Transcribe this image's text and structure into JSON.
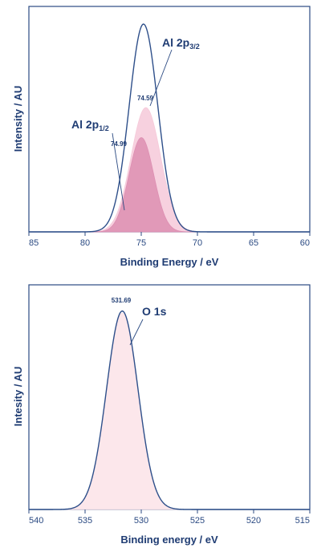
{
  "chart_data": [
    {
      "type": "area",
      "xlabel": "Binding Energy / eV",
      "ylabel": "Intensity / AU",
      "xlim": [
        85,
        60
      ],
      "x_ticks": [
        "85",
        "80",
        "75",
        "70",
        "65",
        "60"
      ],
      "reversed_x": true,
      "grid": false,
      "series": [
        {
          "name": "envelope",
          "kind": "line",
          "color": "#2e4f8a",
          "center": 74.8,
          "fwhm": 3.0,
          "height": 0.97
        },
        {
          "component": "Al 2p3/2",
          "kind": "filled",
          "color": "#f6c9d9",
          "center": 74.59,
          "fwhm": 3.1,
          "height": 0.58
        },
        {
          "component": "Al 2p1/2",
          "kind": "filled",
          "color": "#dd8fb2",
          "center": 74.99,
          "fwhm": 2.6,
          "height": 0.44
        }
      ],
      "annotations": [
        {
          "label_main": "Al 2p",
          "label_sub": "3/2",
          "value": "74.59"
        },
        {
          "label_main": "Al 2p",
          "label_sub": "1/2",
          "value": "74.99"
        }
      ]
    },
    {
      "type": "area",
      "xlabel": "Binding energy / eV",
      "ylabel": "Intesity / AU",
      "xlim": [
        540,
        515
      ],
      "x_ticks": [
        "540",
        "535",
        "530",
        "525",
        "520",
        "515"
      ],
      "reversed_x": true,
      "grid": false,
      "series": [
        {
          "name": "envelope",
          "kind": "line",
          "color": "#2e4f8a",
          "center": 531.69,
          "fwhm": 3.3,
          "height": 0.97
        },
        {
          "component": "O 1s",
          "kind": "filled",
          "color": "#fbe3e8",
          "center": 531.69,
          "fwhm": 3.3,
          "height": 0.96
        }
      ],
      "annotations": [
        {
          "label_main": "O 1s",
          "label_sub": "",
          "value": "531.69"
        }
      ]
    }
  ]
}
